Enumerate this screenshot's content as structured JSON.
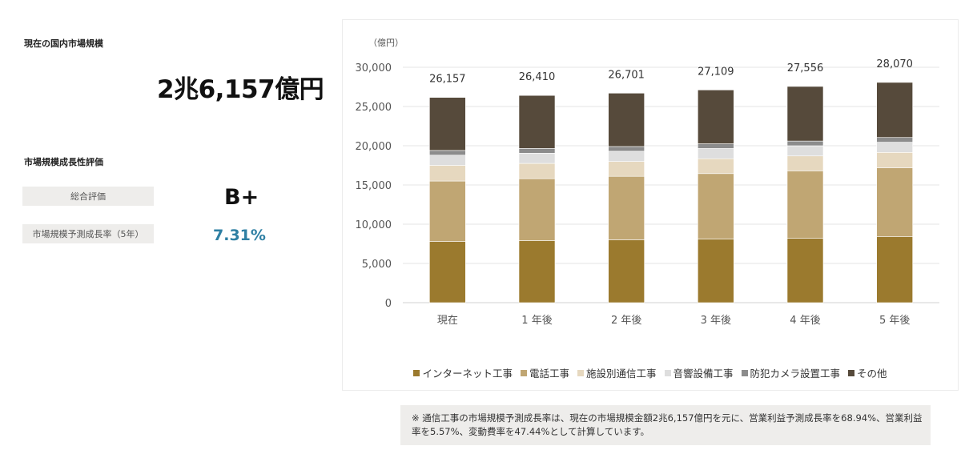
{
  "summary": {
    "market_size_title": "現在の国内市場規模",
    "market_size_value": "2兆6,157億円",
    "growth_title": "市場規模成長性評価",
    "overall_label": "総合評価",
    "overall_grade": "B+",
    "rate_label": "市場規模予測成長率（5年）",
    "rate_value": "7.31%"
  },
  "chart_data": {
    "type": "bar",
    "stacked": true,
    "unit_label": "（億円）",
    "categories": [
      "現在",
      "1 年後",
      "2 年後",
      "3 年後",
      "4 年後",
      "5 年後"
    ],
    "ylim": [
      0,
      30000
    ],
    "yticks": [
      0,
      5000,
      10000,
      15000,
      20000,
      25000,
      30000
    ],
    "ytick_labels": [
      "0",
      "5,000",
      "10,000",
      "15,000",
      "20,000",
      "25,000",
      "30,000"
    ],
    "totals": [
      26157,
      26410,
      26701,
      27109,
      27556,
      28070
    ],
    "total_labels": [
      "26,157",
      "26,410",
      "26,701",
      "27,109",
      "27,556",
      "28,070"
    ],
    "grid": true,
    "legend_position": "bottom",
    "series": [
      {
        "name": "インターネット工事",
        "color": "#9b7a2e",
        "values": [
          7800,
          7900,
          8000,
          8100,
          8200,
          8400
        ]
      },
      {
        "name": "電話工事",
        "color": "#c0a673",
        "values": [
          7700,
          7900,
          8100,
          8350,
          8600,
          8800
        ]
      },
      {
        "name": "施設別通信工事",
        "color": "#e6d8bf",
        "values": [
          2000,
          1950,
          1900,
          1900,
          1900,
          1950
        ]
      },
      {
        "name": "音響設備工事",
        "color": "#dedede",
        "values": [
          1300,
          1300,
          1300,
          1300,
          1300,
          1300
        ]
      },
      {
        "name": "防犯カメラ設置工事",
        "color": "#8c8c8c",
        "values": [
          600,
          600,
          600,
          600,
          600,
          600
        ]
      },
      {
        "name": "その他",
        "color": "#564a3b",
        "values": [
          6757,
          6760,
          6801,
          6859,
          6956,
          7020
        ]
      }
    ]
  },
  "note": {
    "text": "※ 通信工事の市場規模予測成長率は、現在の市場規模金額2兆6,157億円を元に、営業利益予測成長率を68.94%、営業利益率を5.57%、変動費率を47.44%として計算しています。"
  }
}
